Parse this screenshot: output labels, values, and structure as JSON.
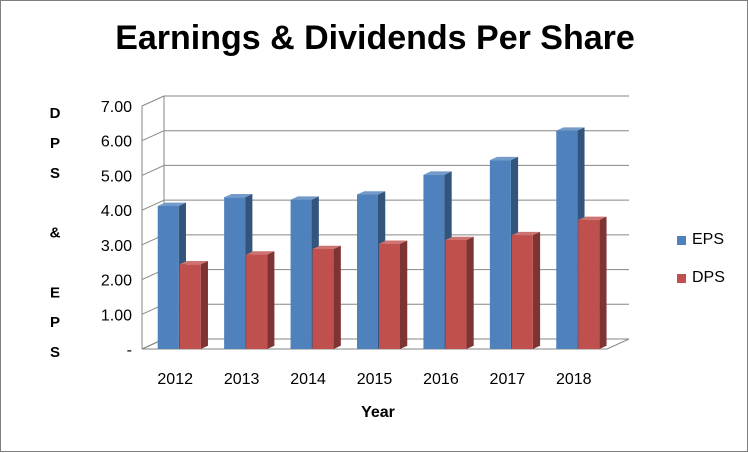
{
  "chart_data": {
    "type": "bar",
    "title": "Earnings & Dividends Per Share",
    "xlabel": "Year",
    "ylabel": "DPS & EPS",
    "categories": [
      "2012",
      "2013",
      "2014",
      "2015",
      "2016",
      "2017",
      "2018"
    ],
    "series": [
      {
        "name": "EPS",
        "color": "#4f81bd",
        "values": [
          4.12,
          4.37,
          4.3,
          4.45,
          5.02,
          5.44,
          6.29
        ]
      },
      {
        "name": "DPS",
        "color": "#c0504d",
        "values": [
          2.44,
          2.72,
          2.88,
          3.03,
          3.14,
          3.28,
          3.72
        ]
      }
    ],
    "ylim": [
      0,
      7
    ],
    "yticks": [
      "-",
      "1.00",
      "2.00",
      "3.00",
      "4.00",
      "5.00",
      "6.00",
      "7.00"
    ],
    "grid": true,
    "legend_position": "right",
    "style": "3d-clustered-column"
  }
}
